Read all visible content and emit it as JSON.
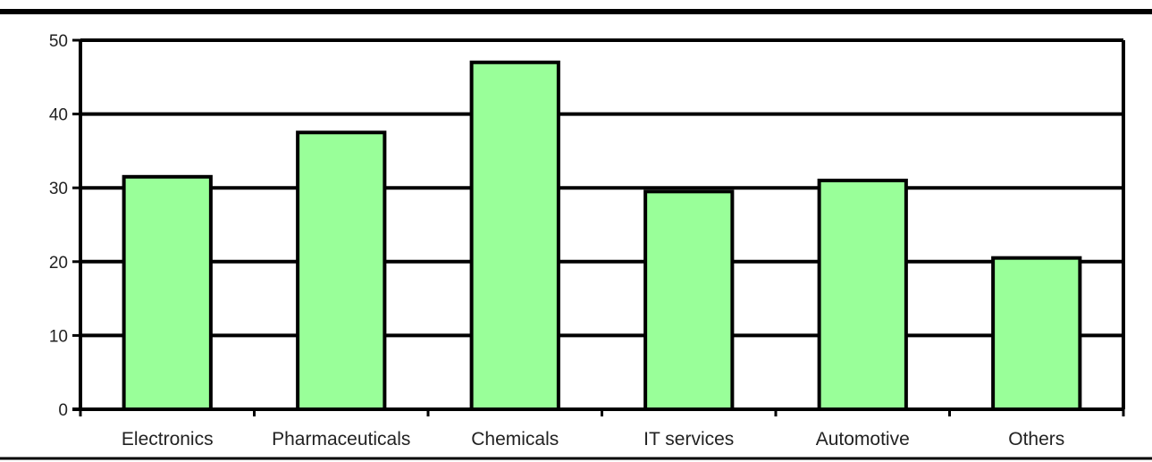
{
  "chart_data": {
    "type": "bar",
    "title": "",
    "xlabel": "",
    "ylabel": "",
    "categories": [
      "Electronics",
      "Pharmaceuticals",
      "Chemicals",
      "IT services",
      "Automotive",
      "Others"
    ],
    "values": [
      31.5,
      37.5,
      47,
      29.5,
      31,
      20.5
    ],
    "ylim": [
      0,
      50
    ],
    "yticks": [
      0,
      10,
      20,
      30,
      40,
      50
    ],
    "ytick_labels": [
      "0",
      "10",
      "20",
      "30",
      "40",
      "50"
    ],
    "grid": true,
    "legend": "none",
    "colors": {
      "bar_fill": "#99FF99",
      "bar_stroke": "#000000",
      "gridline": "#000000",
      "frame_rule": "#000000"
    }
  }
}
